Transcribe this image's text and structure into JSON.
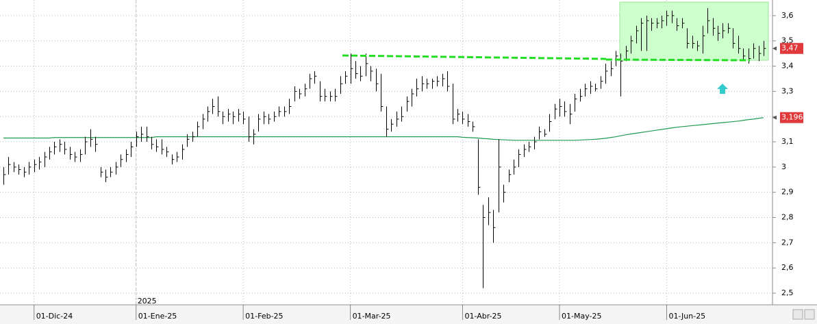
{
  "chart_data": {
    "type": "ohlc",
    "ylim": [
      2.454,
      3.662
    ],
    "yticks": [
      {
        "value": 3.6,
        "label": "3,6"
      },
      {
        "value": 3.5,
        "label": "3,5"
      },
      {
        "value": 3.4,
        "label": "3,4"
      },
      {
        "value": 3.3,
        "label": "3,3"
      },
      {
        "value": 3.2,
        "label": "3,2"
      },
      {
        "value": 3.1,
        "label": "3,1"
      },
      3,
      {
        "value": 2.9,
        "label": "2,9"
      },
      {
        "value": 2.8,
        "label": "2,8"
      },
      {
        "value": 2.7,
        "label": "2,7"
      },
      {
        "value": 2.6,
        "label": "2,6"
      },
      {
        "value": 2.5,
        "label": "2,5"
      }
    ],
    "grid": true,
    "year_label": "2025",
    "bar_color": "#000000",
    "categories": [
      null,
      null,
      null,
      null,
      null,
      null,
      "01-Dic-24",
      null,
      null,
      null,
      null,
      null,
      null,
      null,
      null,
      null,
      null,
      null,
      null,
      null,
      null,
      null,
      null,
      null,
      null,
      null,
      "01-Ene-25",
      null,
      null,
      null,
      null,
      null,
      null,
      null,
      null,
      null,
      null,
      null,
      null,
      null,
      null,
      null,
      null,
      null,
      null,
      null,
      null,
      "01-Feb-25",
      null,
      null,
      null,
      null,
      null,
      null,
      null,
      null,
      null,
      null,
      null,
      null,
      null,
      null,
      null,
      null,
      null,
      null,
      null,
      null,
      "01-Mar-25",
      null,
      null,
      null,
      null,
      null,
      null,
      null,
      null,
      null,
      null,
      null,
      null,
      null,
      null,
      null,
      null,
      null,
      null,
      null,
      null,
      null,
      "01-Abr-25",
      null,
      null,
      null,
      null,
      null,
      null,
      null,
      null,
      null,
      null,
      null,
      null,
      null,
      null,
      null,
      null,
      null,
      null,
      "01-May-25",
      null,
      null,
      null,
      null,
      null,
      null,
      null,
      null,
      null,
      null,
      null,
      null,
      null,
      null,
      null,
      null,
      null,
      null,
      null,
      null,
      "01-Jun-25",
      null,
      null,
      null,
      null,
      null,
      null,
      null,
      null,
      null,
      null,
      null,
      null,
      null,
      null,
      null,
      null,
      null,
      null,
      null
    ],
    "high": [
      3.0,
      3.04,
      3.02,
      3.01,
      3.0,
      3.02,
      3.03,
      3.04,
      3.06,
      3.08,
      3.1,
      3.11,
      3.1,
      3.08,
      3.06,
      3.07,
      3.12,
      3.15,
      3.12,
      3.0,
      2.99,
      3.0,
      3.02,
      3.05,
      3.07,
      3.1,
      3.14,
      3.16,
      3.16,
      3.12,
      3.11,
      3.11,
      3.08,
      3.05,
      3.06,
      3.09,
      3.13,
      3.14,
      3.18,
      3.21,
      3.24,
      3.27,
      3.28,
      3.22,
      3.23,
      3.22,
      3.23,
      3.22,
      3.2,
      3.15,
      3.21,
      3.22,
      3.21,
      3.22,
      3.24,
      3.24,
      3.27,
      3.32,
      3.31,
      3.33,
      3.37,
      3.38,
      3.34,
      3.31,
      3.3,
      3.31,
      3.36,
      3.38,
      3.45,
      3.42,
      3.4,
      3.45,
      3.4,
      3.39,
      3.37,
      3.24,
      3.19,
      3.22,
      3.24,
      3.28,
      3.31,
      3.35,
      3.36,
      3.35,
      3.35,
      3.36,
      3.37,
      3.38,
      3.33,
      3.23,
      3.22,
      3.21,
      3.18,
      3.11,
      2.85,
      2.88,
      2.83,
      3.11,
      2.93,
      2.99,
      3.03,
      3.07,
      3.09,
      3.1,
      3.12,
      3.16,
      3.15,
      3.21,
      3.25,
      3.27,
      3.26,
      3.25,
      3.29,
      3.31,
      3.33,
      3.34,
      3.33,
      3.36,
      3.41,
      3.42,
      3.46,
      3.45,
      3.48,
      3.52,
      3.56,
      3.59,
      3.6,
      3.59,
      3.59,
      3.6,
      3.62,
      3.62,
      3.59,
      3.59,
      3.55,
      3.52,
      3.5,
      3.56,
      3.63,
      3.59,
      3.56,
      3.57,
      3.57,
      3.55,
      3.52,
      3.47,
      3.47,
      3.49,
      3.48,
      3.5
    ],
    "low": [
      2.93,
      2.97,
      2.98,
      2.97,
      2.96,
      2.97,
      2.98,
      2.99,
      3.0,
      3.03,
      3.05,
      3.06,
      3.05,
      3.03,
      3.02,
      3.02,
      3.05,
      3.08,
      3.06,
      2.96,
      2.94,
      2.96,
      2.97,
      3.0,
      3.02,
      3.04,
      3.08,
      3.1,
      3.1,
      3.07,
      3.06,
      3.05,
      3.04,
      3.01,
      3.02,
      3.03,
      3.08,
      3.1,
      3.12,
      3.15,
      3.18,
      3.21,
      3.2,
      3.17,
      3.18,
      3.17,
      3.18,
      3.17,
      3.1,
      3.09,
      3.14,
      3.17,
      3.17,
      3.18,
      3.2,
      3.2,
      3.21,
      3.26,
      3.27,
      3.28,
      3.31,
      3.33,
      3.26,
      3.26,
      3.26,
      3.26,
      3.29,
      3.33,
      3.33,
      3.35,
      3.34,
      3.36,
      3.34,
      3.3,
      3.22,
      3.12,
      3.14,
      3.16,
      3.18,
      3.22,
      3.24,
      3.28,
      3.3,
      3.31,
      3.31,
      3.32,
      3.32,
      3.3,
      3.17,
      3.18,
      3.17,
      3.16,
      3.14,
      2.89,
      2.52,
      2.77,
      2.7,
      2.82,
      2.86,
      2.94,
      2.97,
      3.0,
      3.04,
      3.06,
      3.07,
      3.11,
      3.12,
      3.14,
      3.19,
      3.2,
      3.2,
      3.17,
      3.22,
      3.26,
      3.28,
      3.29,
      3.3,
      3.31,
      3.33,
      3.36,
      3.4,
      3.28,
      3.42,
      3.45,
      3.49,
      3.46,
      3.46,
      3.54,
      3.55,
      3.55,
      3.56,
      3.57,
      3.54,
      3.55,
      3.47,
      3.47,
      3.46,
      3.45,
      3.53,
      3.52,
      3.5,
      3.51,
      3.53,
      3.47,
      3.45,
      3.42,
      3.41,
      3.43,
      3.42,
      3.44
    ],
    "close": [
      2.97,
      3.01,
      3.0,
      2.99,
      2.98,
      3.0,
      3.01,
      3.02,
      3.04,
      3.06,
      3.08,
      3.09,
      3.07,
      3.05,
      3.04,
      3.05,
      3.1,
      3.11,
      3.09,
      2.98,
      2.96,
      2.98,
      3.0,
      3.03,
      3.05,
      3.08,
      3.12,
      3.13,
      3.12,
      3.09,
      3.08,
      3.07,
      3.06,
      3.03,
      3.04,
      3.07,
      3.11,
      3.12,
      3.16,
      3.19,
      3.22,
      3.24,
      3.22,
      3.2,
      3.21,
      3.2,
      3.21,
      3.19,
      3.12,
      3.13,
      3.19,
      3.2,
      3.19,
      3.2,
      3.22,
      3.22,
      3.24,
      3.3,
      3.29,
      3.31,
      3.35,
      3.36,
      3.28,
      3.28,
      3.28,
      3.28,
      3.33,
      3.36,
      3.39,
      3.37,
      3.36,
      3.41,
      3.38,
      3.33,
      3.24,
      3.15,
      3.17,
      3.19,
      3.2,
      3.26,
      3.29,
      3.31,
      3.33,
      3.33,
      3.34,
      3.34,
      3.35,
      3.32,
      3.19,
      3.21,
      3.19,
      3.18,
      3.16,
      2.92,
      2.8,
      2.82,
      2.76,
      3.0,
      2.9,
      2.97,
      3.0,
      3.05,
      3.07,
      3.08,
      3.1,
      3.14,
      3.13,
      3.18,
      3.23,
      3.24,
      3.22,
      3.21,
      3.27,
      3.28,
      3.31,
      3.32,
      3.31,
      3.34,
      3.38,
      3.39,
      3.44,
      3.42,
      3.46,
      3.5,
      3.54,
      3.57,
      3.58,
      3.57,
      3.57,
      3.58,
      3.6,
      3.6,
      3.56,
      3.57,
      3.49,
      3.49,
      3.48,
      3.52,
      3.58,
      3.55,
      3.53,
      3.54,
      3.55,
      3.49,
      3.47,
      3.44,
      3.43,
      3.47,
      3.45,
      3.47
    ],
    "moving_average": {
      "color": "#1f9a4f",
      "values": [
        3.115,
        3.115,
        3.115,
        3.115,
        3.115,
        3.115,
        3.115,
        3.115,
        3.115,
        3.115,
        3.117,
        3.117,
        3.117,
        3.117,
        3.117,
        3.117,
        3.117,
        3.117,
        3.117,
        3.117,
        3.117,
        3.117,
        3.117,
        3.117,
        3.117,
        3.117,
        3.117,
        3.117,
        3.117,
        3.117,
        3.12,
        3.12,
        3.12,
        3.12,
        3.12,
        3.12,
        3.12,
        3.12,
        3.12,
        3.12,
        3.12,
        3.12,
        3.12,
        3.12,
        3.12,
        3.12,
        3.12,
        3.12,
        3.12,
        3.12,
        3.12,
        3.12,
        3.12,
        3.12,
        3.12,
        3.12,
        3.12,
        3.12,
        3.12,
        3.12,
        3.12,
        3.12,
        3.12,
        3.12,
        3.12,
        3.12,
        3.12,
        3.12,
        3.12,
        3.12,
        3.12,
        3.12,
        3.12,
        3.12,
        3.12,
        3.12,
        3.12,
        3.12,
        3.12,
        3.12,
        3.12,
        3.12,
        3.12,
        3.12,
        3.12,
        3.12,
        3.12,
        3.12,
        3.12,
        3.12,
        3.118,
        3.117,
        3.116,
        3.115,
        3.113,
        3.112,
        3.11,
        3.109,
        3.108,
        3.107,
        3.106,
        3.106,
        3.106,
        3.106,
        3.106,
        3.106,
        3.106,
        3.106,
        3.106,
        3.106,
        3.106,
        3.106,
        3.106,
        3.107,
        3.108,
        3.109,
        3.11,
        3.112,
        3.114,
        3.117,
        3.12,
        3.124,
        3.128,
        3.131,
        3.134,
        3.137,
        3.14,
        3.143,
        3.146,
        3.149,
        3.152,
        3.155,
        3.158,
        3.16,
        3.162,
        3.164,
        3.166,
        3.168,
        3.17,
        3.172,
        3.174,
        3.176,
        3.178,
        3.18,
        3.182,
        3.185,
        3.188,
        3.19,
        3.193,
        3.196
      ]
    },
    "last_price": {
      "value": 3.47,
      "label": "3,47",
      "color": "#e0393b"
    },
    "ma_last": {
      "value": 3.196,
      "label": "3,196",
      "color": "#e0393b"
    }
  }
}
